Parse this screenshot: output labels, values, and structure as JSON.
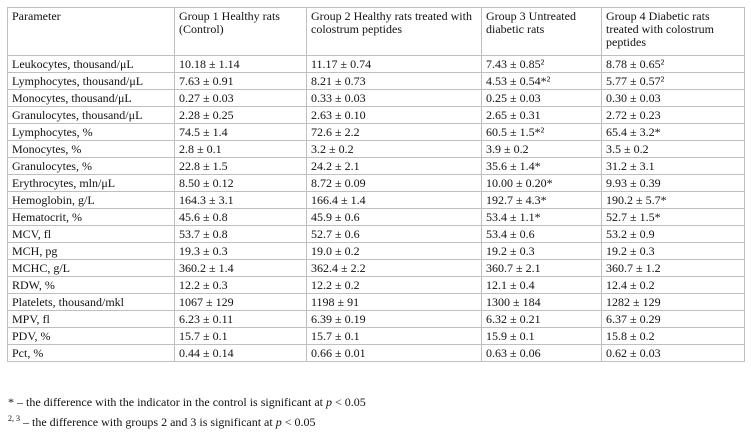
{
  "table": {
    "headers": [
      "Parameter",
      "Group 1 Healthy rats (Control)",
      "Group 2 Healthy rats treated with colostrum peptides",
      "Group 3 Untreated diabetic rats",
      "Group 4 Diabetic rats treated with colostrum peptides"
    ],
    "rows": [
      [
        "Leukocytes, thousand/μL",
        "10.18 ± 1.14",
        "11.17 ± 0.74",
        "7.43 ± 0.85²",
        "8.78 ± 0.65²"
      ],
      [
        "Lymphocytes, thousand/μL",
        "7.63 ± 0.91",
        "8.21 ± 0.73",
        "4.53 ± 0.54*²",
        "5.77 ± 0.57²"
      ],
      [
        "Monocytes, thousand/μL",
        "0.27 ± 0.03",
        "0.33 ± 0.03",
        "0.25 ± 0.03",
        "0.30 ± 0.03"
      ],
      [
        "Granulocytes, thousand/μL",
        "2.28 ± 0.25",
        "2.63 ± 0.10",
        "2.65 ± 0.31",
        "2.72 ± 0.23"
      ],
      [
        "Lymphocytes, %",
        "74.5 ± 1.4",
        "72.6 ± 2.2",
        "60.5 ± 1.5*²",
        "65.4 ± 3.2*"
      ],
      [
        "Monocytes, %",
        "2.8 ± 0.1",
        "3.2 ± 0.2",
        "3.9 ± 0.2",
        "3.5 ± 0.2"
      ],
      [
        "Granulocytes, %",
        "22.8 ± 1.5",
        "24.2 ± 2.1",
        "35.6 ± 1.4*",
        "31.2 ± 3.1"
      ],
      [
        "Erythrocytes, mln/μL",
        "8.50 ± 0.12",
        "8.72 ± 0.09",
        "10.00 ± 0.20*",
        "9.93 ± 0.39"
      ],
      [
        "Hemoglobin, g/L",
        "164.3 ± 3.1",
        "166.4 ± 1.4",
        "192.7 ± 4.3*",
        "190.2 ± 5.7*"
      ],
      [
        "Hematocrit, %",
        "45.6 ± 0.8",
        "45.9 ± 0.6",
        "53.4 ± 1.1*",
        "52.7 ± 1.5*"
      ],
      [
        "MCV, fl",
        "53.7 ± 0.8",
        "52.7 ± 0.6",
        "53.4 ± 0.6",
        "53.2 ± 0.9"
      ],
      [
        "MCH, pg",
        "19.3 ± 0.3",
        "19.0 ± 0.2",
        "19.2 ± 0.3",
        "19.2 ± 0.3"
      ],
      [
        "MCHC, g/L",
        "360.2 ± 1.4",
        "362.4 ± 2.2",
        "360.7 ± 2.1",
        "360.7 ± 1.2"
      ],
      [
        "RDW, %",
        "12.2 ± 0.3",
        "12.2 ± 0.2",
        "12.1 ± 0.4",
        "12.4 ± 0.2"
      ],
      [
        "Platelets, thousand/mkl",
        "1067 ± 129",
        "1198 ± 91",
        "1300 ± 184",
        "1282 ± 129"
      ],
      [
        "MPV, fl",
        "6.23 ± 0.11",
        "6.39 ± 0.19",
        "6.32 ± 0.21",
        "6.37 ± 0.29"
      ],
      [
        "PDV, %",
        "15.7 ± 0.1",
        "15.7 ± 0.1",
        "15.9 ± 0.1",
        "15.8 ± 0.2"
      ],
      [
        "Pct, %",
        "0.44 ± 0.14",
        "0.66 ± 0.01",
        "0.63 ± 0.06",
        "0.62 ± 0.03"
      ]
    ]
  },
  "footnotes": {
    "note1": {
      "mark": "*",
      "text": " – the difference with the indicator in the control is significant at ",
      "p_var": "p",
      "threshold": " < 0.05"
    },
    "note2": {
      "mark": "2, 3",
      "text": " – the difference with groups 2 and 3 is significant at ",
      "p_var": "p",
      "threshold": " < 0.05"
    }
  }
}
